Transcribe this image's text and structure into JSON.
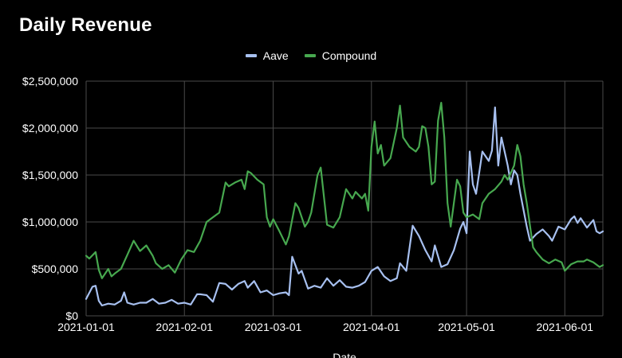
{
  "chart_data": {
    "type": "line",
    "title": "Daily Revenue",
    "xlabel": "Date",
    "ylabel": "",
    "ylim": [
      0,
      2500000
    ],
    "xlim": [
      "2021-01-01",
      "2021-06-13"
    ],
    "grid": true,
    "legend_position": "top-center",
    "y_ticks": [
      0,
      500000,
      1000000,
      1500000,
      2000000,
      2500000
    ],
    "y_tick_labels": [
      "$0",
      "$500,000",
      "$1,000,000",
      "$1,500,000",
      "$2,000,000",
      "$2,500,000"
    ],
    "x_ticks": [
      "2021-01-01",
      "2021-02-01",
      "2021-03-01",
      "2021-04-01",
      "2021-05-01",
      "2021-06-01"
    ],
    "x_tick_labels": [
      "2021-01-01",
      "2021-02-01",
      "2021-03-01",
      "2021-04-01",
      "2021-05-01",
      "2021-06-01"
    ],
    "series": [
      {
        "name": "Aave",
        "color": "#a7c0f0",
        "points": [
          [
            "2021-01-01",
            180000
          ],
          [
            "2021-01-03",
            310000
          ],
          [
            "2021-01-04",
            320000
          ],
          [
            "2021-01-05",
            160000
          ],
          [
            "2021-01-06",
            110000
          ],
          [
            "2021-01-08",
            130000
          ],
          [
            "2021-01-10",
            120000
          ],
          [
            "2021-01-12",
            160000
          ],
          [
            "2021-01-13",
            250000
          ],
          [
            "2021-01-14",
            140000
          ],
          [
            "2021-01-16",
            120000
          ],
          [
            "2021-01-18",
            140000
          ],
          [
            "2021-01-20",
            140000
          ],
          [
            "2021-01-22",
            180000
          ],
          [
            "2021-01-24",
            130000
          ],
          [
            "2021-01-26",
            140000
          ],
          [
            "2021-01-28",
            170000
          ],
          [
            "2021-01-30",
            130000
          ],
          [
            "2021-02-01",
            140000
          ],
          [
            "2021-02-03",
            120000
          ],
          [
            "2021-02-05",
            230000
          ],
          [
            "2021-02-06",
            230000
          ],
          [
            "2021-02-08",
            220000
          ],
          [
            "2021-02-10",
            150000
          ],
          [
            "2021-02-12",
            350000
          ],
          [
            "2021-02-14",
            340000
          ],
          [
            "2021-02-16",
            280000
          ],
          [
            "2021-02-18",
            340000
          ],
          [
            "2021-02-20",
            370000
          ],
          [
            "2021-02-21",
            300000
          ],
          [
            "2021-02-23",
            370000
          ],
          [
            "2021-02-25",
            250000
          ],
          [
            "2021-02-27",
            270000
          ],
          [
            "2021-03-01",
            220000
          ],
          [
            "2021-03-03",
            240000
          ],
          [
            "2021-03-05",
            250000
          ],
          [
            "2021-03-06",
            220000
          ],
          [
            "2021-03-07",
            630000
          ],
          [
            "2021-03-09",
            450000
          ],
          [
            "2021-03-10",
            480000
          ],
          [
            "2021-03-12",
            290000
          ],
          [
            "2021-03-14",
            320000
          ],
          [
            "2021-03-16",
            300000
          ],
          [
            "2021-03-18",
            400000
          ],
          [
            "2021-03-20",
            320000
          ],
          [
            "2021-03-22",
            380000
          ],
          [
            "2021-03-24",
            310000
          ],
          [
            "2021-03-26",
            300000
          ],
          [
            "2021-03-28",
            320000
          ],
          [
            "2021-03-30",
            360000
          ],
          [
            "2021-04-01",
            480000
          ],
          [
            "2021-04-03",
            520000
          ],
          [
            "2021-04-05",
            420000
          ],
          [
            "2021-04-07",
            370000
          ],
          [
            "2021-04-09",
            400000
          ],
          [
            "2021-04-10",
            560000
          ],
          [
            "2021-04-12",
            480000
          ],
          [
            "2021-04-14",
            960000
          ],
          [
            "2021-04-16",
            850000
          ],
          [
            "2021-04-18",
            700000
          ],
          [
            "2021-04-20",
            580000
          ],
          [
            "2021-04-21",
            750000
          ],
          [
            "2021-04-23",
            520000
          ],
          [
            "2021-04-25",
            550000
          ],
          [
            "2021-04-27",
            700000
          ],
          [
            "2021-04-29",
            930000
          ],
          [
            "2021-04-30",
            1000000
          ],
          [
            "2021-05-01",
            880000
          ],
          [
            "2021-05-02",
            1750000
          ],
          [
            "2021-05-03",
            1400000
          ],
          [
            "2021-05-04",
            1300000
          ],
          [
            "2021-05-06",
            1750000
          ],
          [
            "2021-05-08",
            1650000
          ],
          [
            "2021-05-09",
            1760000
          ],
          [
            "2021-05-10",
            2220000
          ],
          [
            "2021-05-11",
            1600000
          ],
          [
            "2021-05-12",
            1900000
          ],
          [
            "2021-05-13",
            1750000
          ],
          [
            "2021-05-14",
            1600000
          ],
          [
            "2021-05-15",
            1400000
          ],
          [
            "2021-05-16",
            1550000
          ],
          [
            "2021-05-17",
            1500000
          ],
          [
            "2021-05-18",
            1300000
          ],
          [
            "2021-05-20",
            950000
          ],
          [
            "2021-05-21",
            800000
          ],
          [
            "2021-05-23",
            870000
          ],
          [
            "2021-05-25",
            920000
          ],
          [
            "2021-05-27",
            850000
          ],
          [
            "2021-05-28",
            800000
          ],
          [
            "2021-05-30",
            950000
          ],
          [
            "2021-06-01",
            920000
          ],
          [
            "2021-06-03",
            1030000
          ],
          [
            "2021-06-04",
            1060000
          ],
          [
            "2021-06-05",
            990000
          ],
          [
            "2021-06-06",
            1040000
          ],
          [
            "2021-06-08",
            940000
          ],
          [
            "2021-06-10",
            1020000
          ],
          [
            "2021-06-11",
            900000
          ],
          [
            "2021-06-12",
            880000
          ],
          [
            "2021-06-13",
            900000
          ]
        ]
      },
      {
        "name": "Compound",
        "color": "#47a84f",
        "points": [
          [
            "2021-01-01",
            640000
          ],
          [
            "2021-01-02",
            610000
          ],
          [
            "2021-01-04",
            680000
          ],
          [
            "2021-01-05",
            490000
          ],
          [
            "2021-01-06",
            400000
          ],
          [
            "2021-01-08",
            500000
          ],
          [
            "2021-01-09",
            420000
          ],
          [
            "2021-01-10",
            450000
          ],
          [
            "2021-01-12",
            500000
          ],
          [
            "2021-01-14",
            650000
          ],
          [
            "2021-01-16",
            800000
          ],
          [
            "2021-01-18",
            690000
          ],
          [
            "2021-01-20",
            750000
          ],
          [
            "2021-01-22",
            640000
          ],
          [
            "2021-01-23",
            560000
          ],
          [
            "2021-01-25",
            500000
          ],
          [
            "2021-01-27",
            540000
          ],
          [
            "2021-01-29",
            460000
          ],
          [
            "2021-01-31",
            600000
          ],
          [
            "2021-02-02",
            700000
          ],
          [
            "2021-02-04",
            680000
          ],
          [
            "2021-02-06",
            800000
          ],
          [
            "2021-02-08",
            1000000
          ],
          [
            "2021-02-10",
            1050000
          ],
          [
            "2021-02-12",
            1100000
          ],
          [
            "2021-02-14",
            1420000
          ],
          [
            "2021-02-15",
            1380000
          ],
          [
            "2021-02-17",
            1420000
          ],
          [
            "2021-02-19",
            1450000
          ],
          [
            "2021-02-20",
            1350000
          ],
          [
            "2021-02-21",
            1540000
          ],
          [
            "2021-02-22",
            1520000
          ],
          [
            "2021-02-24",
            1450000
          ],
          [
            "2021-02-26",
            1400000
          ],
          [
            "2021-02-27",
            1050000
          ],
          [
            "2021-02-28",
            950000
          ],
          [
            "2021-03-01",
            1030000
          ],
          [
            "2021-03-03",
            900000
          ],
          [
            "2021-03-05",
            760000
          ],
          [
            "2021-03-06",
            850000
          ],
          [
            "2021-03-08",
            1200000
          ],
          [
            "2021-03-09",
            1150000
          ],
          [
            "2021-03-11",
            950000
          ],
          [
            "2021-03-12",
            1000000
          ],
          [
            "2021-03-13",
            1100000
          ],
          [
            "2021-03-15",
            1500000
          ],
          [
            "2021-03-16",
            1580000
          ],
          [
            "2021-03-18",
            970000
          ],
          [
            "2021-03-20",
            940000
          ],
          [
            "2021-03-22",
            1050000
          ],
          [
            "2021-03-24",
            1350000
          ],
          [
            "2021-03-26",
            1250000
          ],
          [
            "2021-03-27",
            1320000
          ],
          [
            "2021-03-29",
            1250000
          ],
          [
            "2021-03-30",
            1300000
          ],
          [
            "2021-03-31",
            1120000
          ],
          [
            "2021-04-01",
            1800000
          ],
          [
            "2021-04-02",
            2070000
          ],
          [
            "2021-04-03",
            1730000
          ],
          [
            "2021-04-04",
            1820000
          ],
          [
            "2021-04-05",
            1600000
          ],
          [
            "2021-04-07",
            1680000
          ],
          [
            "2021-04-09",
            2000000
          ],
          [
            "2021-04-10",
            2240000
          ],
          [
            "2021-04-11",
            1900000
          ],
          [
            "2021-04-13",
            1800000
          ],
          [
            "2021-04-15",
            1750000
          ],
          [
            "2021-04-16",
            1800000
          ],
          [
            "2021-04-17",
            2020000
          ],
          [
            "2021-04-18",
            2000000
          ],
          [
            "2021-04-19",
            1800000
          ],
          [
            "2021-04-20",
            1400000
          ],
          [
            "2021-04-21",
            1430000
          ],
          [
            "2021-04-22",
            2080000
          ],
          [
            "2021-04-23",
            2270000
          ],
          [
            "2021-04-24",
            1900000
          ],
          [
            "2021-04-25",
            1200000
          ],
          [
            "2021-04-26",
            950000
          ],
          [
            "2021-04-28",
            1450000
          ],
          [
            "2021-04-29",
            1380000
          ],
          [
            "2021-04-30",
            1100000
          ],
          [
            "2021-05-01",
            1050000
          ],
          [
            "2021-05-03",
            1080000
          ],
          [
            "2021-05-05",
            1030000
          ],
          [
            "2021-05-06",
            1200000
          ],
          [
            "2021-05-08",
            1300000
          ],
          [
            "2021-05-10",
            1350000
          ],
          [
            "2021-05-12",
            1430000
          ],
          [
            "2021-05-13",
            1500000
          ],
          [
            "2021-05-14",
            1450000
          ],
          [
            "2021-05-16",
            1600000
          ],
          [
            "2021-05-17",
            1820000
          ],
          [
            "2021-05-18",
            1700000
          ],
          [
            "2021-05-19",
            1400000
          ],
          [
            "2021-05-20",
            1200000
          ],
          [
            "2021-05-22",
            730000
          ],
          [
            "2021-05-23",
            680000
          ],
          [
            "2021-05-25",
            600000
          ],
          [
            "2021-05-27",
            560000
          ],
          [
            "2021-05-29",
            600000
          ],
          [
            "2021-05-31",
            570000
          ],
          [
            "2021-06-01",
            480000
          ],
          [
            "2021-06-03",
            550000
          ],
          [
            "2021-06-05",
            580000
          ],
          [
            "2021-06-07",
            580000
          ],
          [
            "2021-06-08",
            600000
          ],
          [
            "2021-06-10",
            570000
          ],
          [
            "2021-06-12",
            520000
          ],
          [
            "2021-06-13",
            540000
          ]
        ]
      }
    ]
  }
}
